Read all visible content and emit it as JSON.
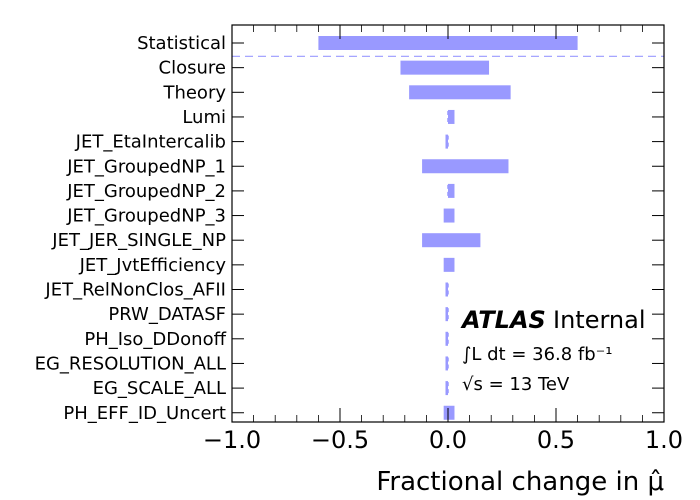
{
  "chart_data": {
    "type": "bar",
    "orientation": "horizontal",
    "categories": [
      "Statistical",
      "Closure",
      "Theory",
      "Lumi",
      "JET_EtaIntercalib",
      "JET_GroupedNP_1",
      "JET_GroupedNP_2",
      "JET_GroupedNP_3",
      "JET_JER_SINGLE_NP",
      "JET_JvtEfficiency",
      "JET_RelNonClos_AFII",
      "PRW_DATASF",
      "PH_Iso_DDonoff",
      "EG_RESOLUTION_ALL",
      "EG_SCALE_ALL",
      "PH_EFF_ID_Uncert"
    ],
    "low": [
      -0.6,
      -0.22,
      -0.18,
      0.0,
      -0.01,
      -0.12,
      0.0,
      -0.02,
      -0.12,
      -0.02,
      -0.01,
      -0.01,
      -0.01,
      -0.01,
      -0.01,
      -0.02
    ],
    "high": [
      0.6,
      0.19,
      0.29,
      0.03,
      0.0,
      0.28,
      0.03,
      0.03,
      0.15,
      0.03,
      0.0,
      0.0,
      0.0,
      0.0,
      0.0,
      0.03
    ],
    "xlim": [
      -1.0,
      1.0
    ],
    "xticks": [
      "−1.0",
      "−0.5",
      "0.0",
      "0.5",
      "1.0"
    ],
    "xlabel": "Fractional change in μ̂",
    "ylabel": "",
    "title": "",
    "bar_color": "#9999ff",
    "separator_after": "Statistical",
    "grid": false
  },
  "annotation": {
    "atlas": "ATLAS",
    "internal": "Internal",
    "lumi": "∫L dt = 36.8 fb⁻¹",
    "energy": "√s = 13 TeV"
  }
}
